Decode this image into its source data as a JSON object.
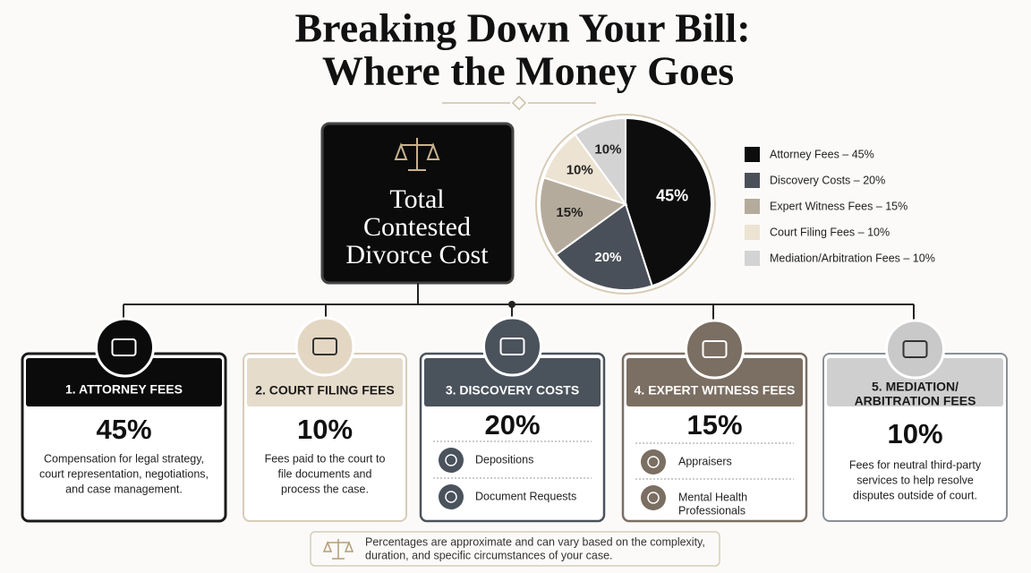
{
  "title": [
    "Breaking Down Your Bill:",
    "Where the Money Goes"
  ],
  "center_box": [
    "Total",
    "Contested",
    "Divorce Cost"
  ],
  "chart_data": {
    "type": "pie",
    "categories": [
      "Attorney Fees – 45%",
      "Discovery Costs – 20%",
      "Expert Witness Fees – 15%",
      "Court Filing Fees – 10%",
      "Mediation/Arbitration Fees – 10%"
    ],
    "values": [
      45,
      20,
      15,
      10,
      10
    ],
    "value_labels": [
      "45%",
      "20%",
      "15%",
      "10%",
      "10%"
    ],
    "colors": [
      "#0d0d0d",
      "#4a5059",
      "#b5ab9c",
      "#ece3d3",
      "#d3d3d3"
    ]
  },
  "cards": [
    {
      "title": [
        "1. ATTORNEY FEES"
      ],
      "percent": "45%",
      "description": [
        "Compensation for legal strategy,",
        "court representation, negotiations,",
        "and case management."
      ]
    },
    {
      "title": [
        "2. COURT FILING FEES"
      ],
      "percent": "10%",
      "description": [
        "Fees paid to the court to",
        "file documents and",
        "process the case."
      ]
    },
    {
      "title": [
        "3. DISCOVERY COSTS"
      ],
      "percent": "20%",
      "items": [
        [
          "Depositions"
        ],
        [
          "Document Requests"
        ]
      ]
    },
    {
      "title": [
        "4. EXPERT WITNESS FEES"
      ],
      "percent": "15%",
      "items": [
        [
          "Appraisers"
        ],
        [
          "Mental Health",
          "Professionals"
        ]
      ]
    },
    {
      "title": [
        "5. MEDIATION/",
        "ARBITRATION FEES"
      ],
      "percent": "10%",
      "description": [
        "Fees for neutral third-party",
        "services to help resolve",
        "disputes outside of court."
      ]
    }
  ],
  "footnote": [
    "Percentages are approximate and can vary based on the complexity,",
    "duration, and specific circumstances of your case."
  ]
}
